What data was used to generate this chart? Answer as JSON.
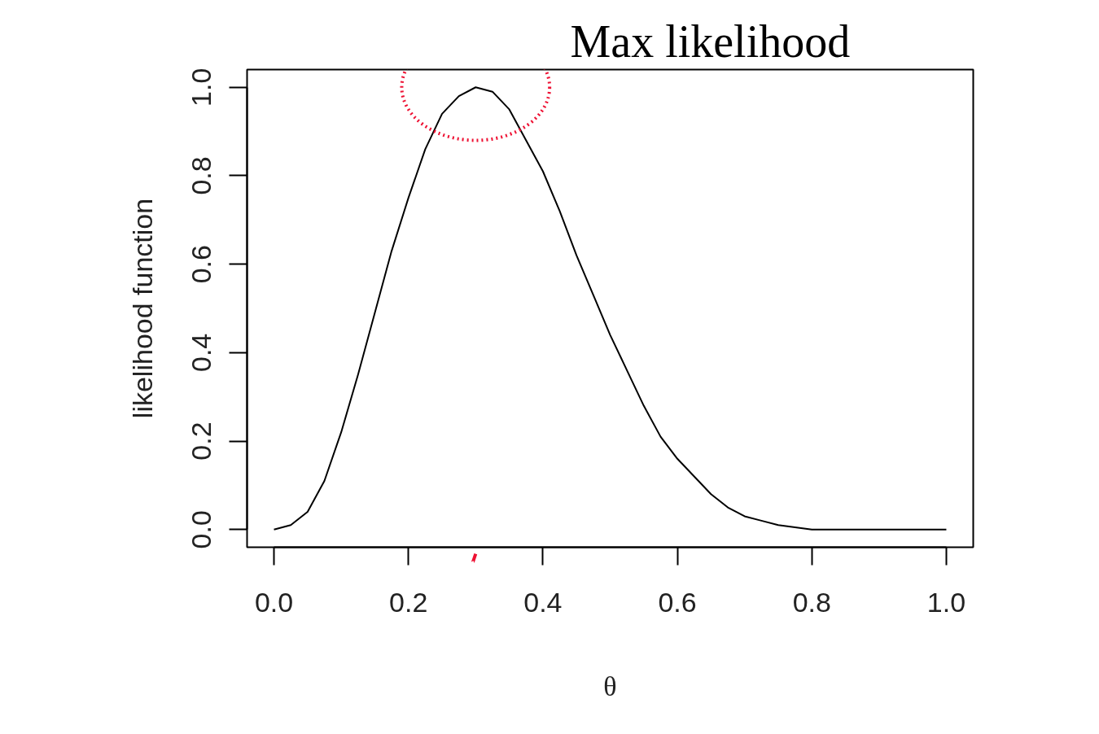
{
  "chart_data": {
    "type": "line",
    "xlabel": "θ",
    "ylabel": "likelihood function",
    "x": [
      0,
      0.025,
      0.05,
      0.075,
      0.1,
      0.125,
      0.15,
      0.175,
      0.2,
      0.225,
      0.25,
      0.275,
      0.3,
      0.325,
      0.35,
      0.375,
      0.4,
      0.425,
      0.45,
      0.475,
      0.5,
      0.525,
      0.55,
      0.575,
      0.6,
      0.625,
      0.65,
      0.675,
      0.7,
      0.725,
      0.75,
      0.8,
      0.85,
      0.9,
      0.95,
      1.0
    ],
    "series": [
      {
        "color": "#000000",
        "values": [
          0,
          0.01,
          0.04,
          0.11,
          0.22,
          0.35,
          0.49,
          0.63,
          0.75,
          0.86,
          0.94,
          0.98,
          1.0,
          0.99,
          0.95,
          0.88,
          0.81,
          0.72,
          0.62,
          0.53,
          0.44,
          0.36,
          0.28,
          0.21,
          0.16,
          0.12,
          0.08,
          0.05,
          0.03,
          0.02,
          0.01,
          0,
          0,
          0,
          0,
          0
        ]
      }
    ],
    "xlim": [
      -0.04,
      1.04
    ],
    "ylim": [
      -0.04,
      1.04
    ],
    "xticks": [
      {
        "value": 0,
        "label": "0.0"
      },
      0.2,
      0.4,
      0.6,
      0.8,
      {
        "value": 1,
        "label": "1.0"
      }
    ],
    "yticks": [
      {
        "value": 0,
        "label": "0.0"
      },
      0.2,
      0.4,
      0.6,
      0.8,
      {
        "value": 1,
        "label": "1.0"
      }
    ],
    "annotations": [
      {
        "text": "Max likelihood",
        "x": 0.3,
        "y": 1.0
      }
    ],
    "grid": false,
    "marker": "none",
    "line_style": "solid"
  }
}
